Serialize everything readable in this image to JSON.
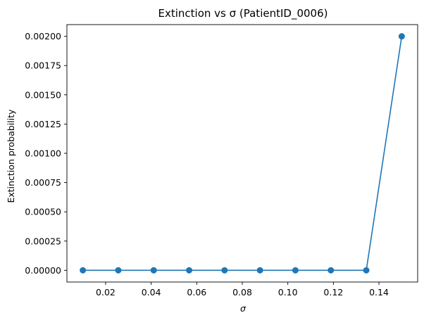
{
  "chart_data": {
    "type": "line",
    "title": "Extinction vs σ  (PatientID_0006)",
    "xlabel": "σ",
    "ylabel": "Extinction probability",
    "x": [
      0.01,
      0.02556,
      0.04111,
      0.05667,
      0.07222,
      0.08778,
      0.10333,
      0.11889,
      0.13444,
      0.15
    ],
    "series": [
      {
        "values": [
          0,
          0,
          0,
          0,
          0,
          0,
          0,
          0,
          0,
          0.002
        ],
        "color": "#1f77b4",
        "marker": "circle"
      }
    ],
    "xlim": [
      0.003,
      0.157
    ],
    "ylim": [
      -0.0001,
      0.0021
    ],
    "xticks": [
      "0.02",
      "0.04",
      "0.06",
      "0.08",
      "0.10",
      "0.12",
      "0.14"
    ],
    "xtick_values": [
      0.02,
      0.04,
      0.06,
      0.08,
      0.1,
      0.12,
      0.14
    ],
    "yticks": [
      "0.00000",
      "0.00025",
      "0.00050",
      "0.00075",
      "0.00100",
      "0.00125",
      "0.00150",
      "0.00175",
      "0.00200"
    ],
    "ytick_values": [
      0,
      0.00025,
      0.0005,
      0.00075,
      0.001,
      0.00125,
      0.0015,
      0.00175,
      0.002
    ],
    "grid": false,
    "legend": "none"
  }
}
